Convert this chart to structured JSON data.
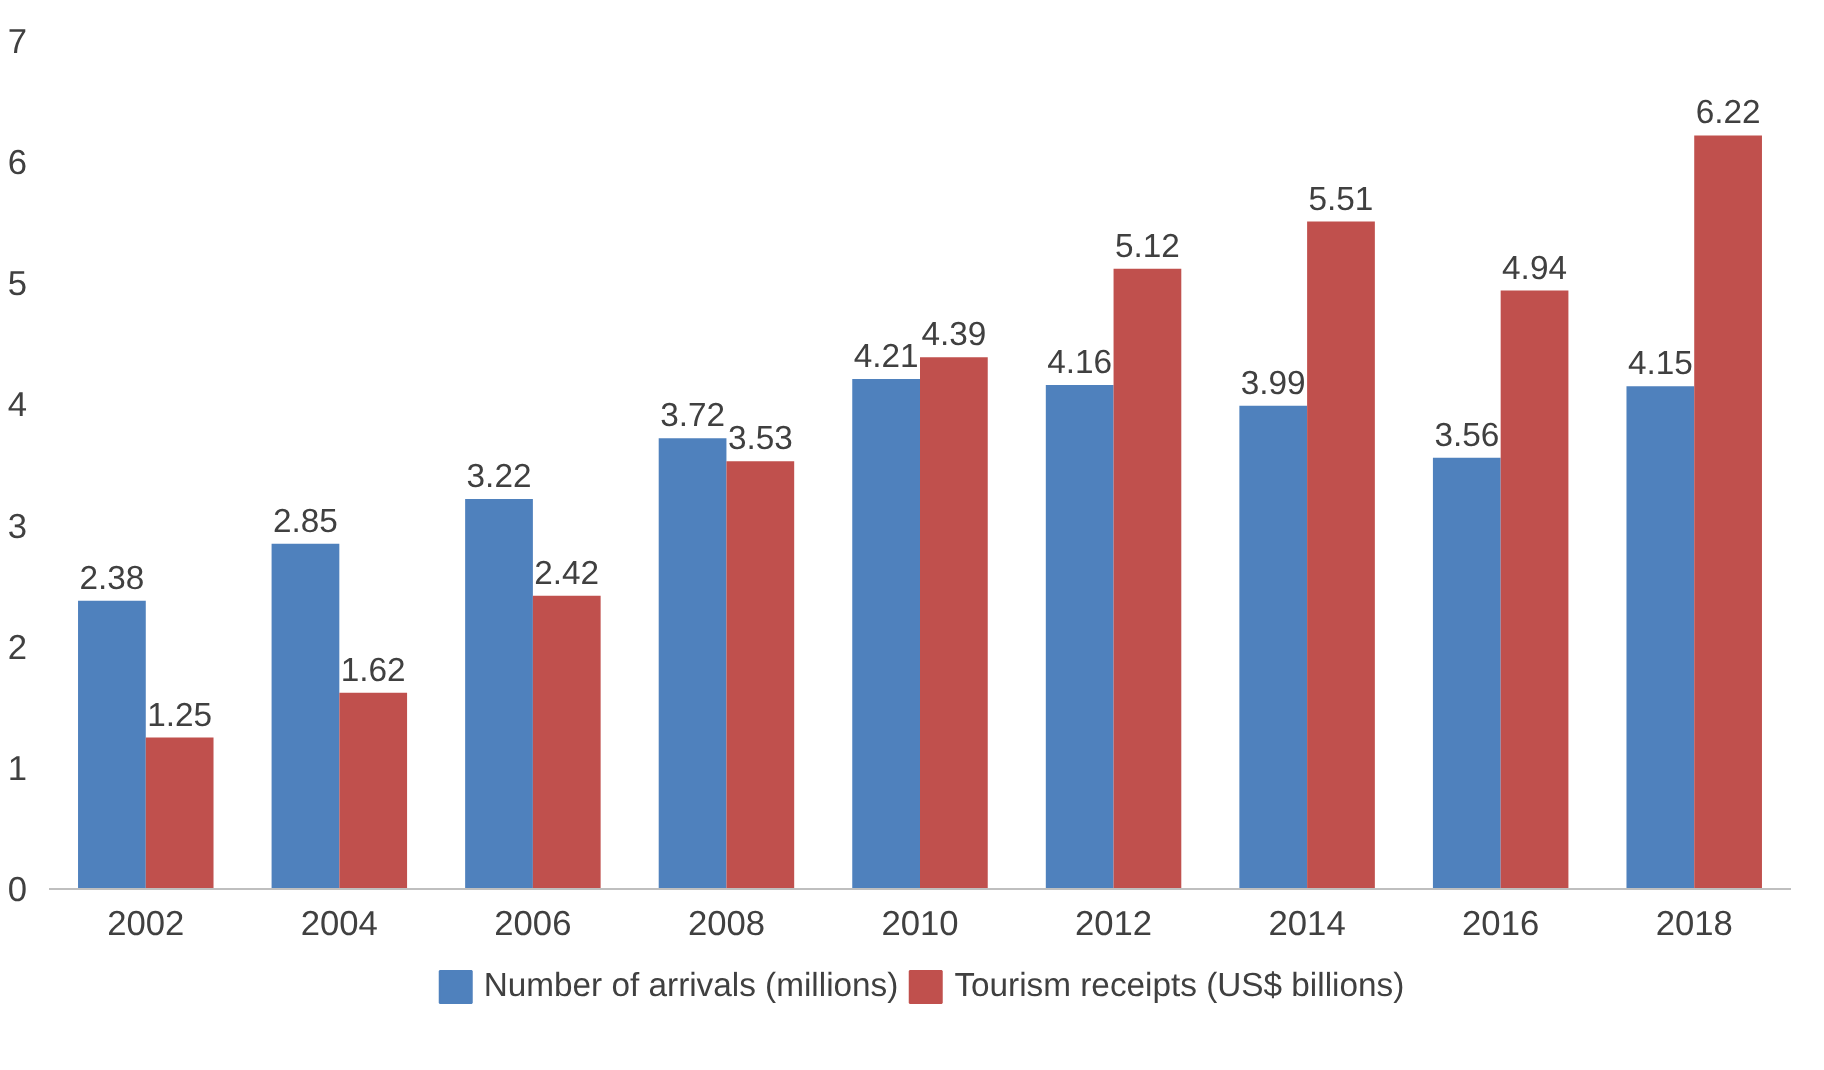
{
  "chart_data": {
    "type": "bar",
    "categories": [
      "2002",
      "2004",
      "2006",
      "2008",
      "2010",
      "2012",
      "2014",
      "2016",
      "2018"
    ],
    "series": [
      {
        "name": "Number of arrivals (millions)",
        "color": "#4f81bd",
        "values": [
          2.38,
          2.85,
          3.22,
          3.72,
          4.21,
          4.16,
          3.99,
          3.56,
          4.15
        ]
      },
      {
        "name": "Tourism receipts (US$ billions)",
        "color": "#c0504d",
        "values": [
          1.25,
          1.62,
          2.42,
          3.53,
          4.39,
          5.12,
          5.51,
          4.94,
          6.22
        ]
      }
    ],
    "ylim": [
      0,
      7
    ],
    "yticks": [
      0,
      1,
      2,
      3,
      4,
      5,
      6,
      7
    ],
    "grid": false,
    "legend": "bottom",
    "data_labels": true
  }
}
